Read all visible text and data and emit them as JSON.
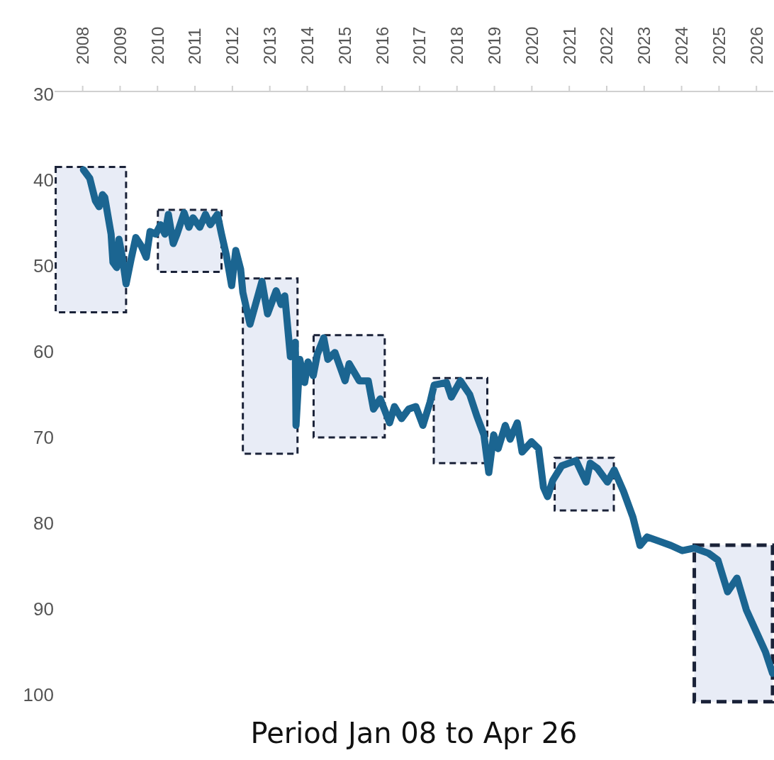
{
  "chart_data": {
    "type": "line",
    "xlabel": "Period Jan 08 to Apr 26",
    "xlim": [
      2007.25,
      2026.45
    ],
    "xticks": [
      2008,
      2009,
      2010,
      2011,
      2012,
      2013,
      2014,
      2015,
      2016,
      2017,
      2018,
      2019,
      2020,
      2021,
      2022,
      2023,
      2024,
      2025,
      2026
    ],
    "ylim": [
      100,
      30
    ],
    "yticks": [
      30,
      40,
      50,
      60,
      70,
      80,
      90,
      100
    ],
    "bands": [
      {
        "axis": "x",
        "from": 2007.28,
        "to": 2009.16,
        "color": "#e8ecf6"
      },
      {
        "axis": "x",
        "from": 2010.01,
        "to": 2011.71,
        "color": "#e8ecf6"
      },
      {
        "axis": "x",
        "from": 2012.28,
        "to": 2013.74,
        "color": "#e8ecf6"
      },
      {
        "axis": "x",
        "from": 2014.17,
        "to": 2016.07,
        "color": "#e8ecf6"
      },
      {
        "axis": "x",
        "from": 2017.38,
        "to": 2018.81,
        "color": "#e8ecf6"
      },
      {
        "axis": "x",
        "from": 2020.61,
        "to": 2022.19,
        "color": "#e8ecf6"
      },
      {
        "axis": "x",
        "from": 2024.34,
        "to": 2026.43,
        "color": "#e8ecf6"
      }
    ],
    "series": [
      {
        "color": "#1b6591",
        "x": [
          2008.02,
          2008.19,
          2008.34,
          2008.44,
          2008.53,
          2008.59,
          2008.76,
          2008.81,
          2008.91,
          2008.97,
          2009.06,
          2009.16,
          2009.29,
          2009.42,
          2009.57,
          2009.7,
          2009.8,
          2009.95,
          2010.08,
          2010.2,
          2010.29,
          2010.42,
          2010.52,
          2010.71,
          2010.84,
          2010.95,
          2011.13,
          2011.28,
          2011.41,
          2011.6,
          2011.71,
          2011.84,
          2011.98,
          2012.09,
          2012.22,
          2012.28,
          2012.47,
          2012.79,
          2012.94,
          2013.17,
          2013.3,
          2013.4,
          2013.55,
          2013.68,
          2013.7,
          2013.8,
          2013.93,
          2014.02,
          2014.16,
          2014.27,
          2014.44,
          2014.55,
          2014.74,
          2015.01,
          2015.12,
          2015.39,
          2015.63,
          2015.77,
          2015.95,
          2016.2,
          2016.33,
          2016.52,
          2016.71,
          2016.9,
          2017.09,
          2017.28,
          2017.39,
          2017.72,
          2017.85,
          2018.09,
          2018.34,
          2018.53,
          2018.72,
          2018.85,
          2018.98,
          2019.1,
          2019.29,
          2019.42,
          2019.61,
          2019.74,
          2019.99,
          2020.18,
          2020.31,
          2020.42,
          2020.56,
          2020.8,
          2021.18,
          2021.45,
          2021.56,
          2021.75,
          2022.02,
          2022.2,
          2022.45,
          2022.7,
          2022.89,
          2023.08,
          2023.4,
          2023.72,
          2024.02,
          2024.34,
          2024.72,
          2024.97,
          2025.23,
          2025.48,
          2025.73,
          2025.99,
          2026.24,
          2026.43
        ],
        "values": [
          38.8,
          39.8,
          42.4,
          43.1,
          41.7,
          42.0,
          46.3,
          49.6,
          50.2,
          46.9,
          49.0,
          52.1,
          49.3,
          46.7,
          47.7,
          49.0,
          46.0,
          46.3,
          45.2,
          46.3,
          44.0,
          47.4,
          46.3,
          43.8,
          45.5,
          44.4,
          45.5,
          44.0,
          45.2,
          44.0,
          46.3,
          48.8,
          52.3,
          48.2,
          50.4,
          53.1,
          56.8,
          51.8,
          55.6,
          52.9,
          54.5,
          53.5,
          60.6,
          58.9,
          68.6,
          60.9,
          63.6,
          61.2,
          62.8,
          60.3,
          58.4,
          60.9,
          60.1,
          63.4,
          61.4,
          63.4,
          63.4,
          66.7,
          65.5,
          68.3,
          66.4,
          67.8,
          66.7,
          66.4,
          68.6,
          65.9,
          63.9,
          63.6,
          65.3,
          63.4,
          65.0,
          67.5,
          69.7,
          74.1,
          69.7,
          71.3,
          68.6,
          70.2,
          68.3,
          71.7,
          70.5,
          71.3,
          75.8,
          76.9,
          75.0,
          73.3,
          72.7,
          75.2,
          73.0,
          73.6,
          75.2,
          73.8,
          76.3,
          79.3,
          82.6,
          81.6,
          82.1,
          82.6,
          83.2,
          82.9,
          83.5,
          84.3,
          88.0,
          86.4,
          90.1,
          92.6,
          95.0,
          97.5
        ]
      }
    ]
  }
}
